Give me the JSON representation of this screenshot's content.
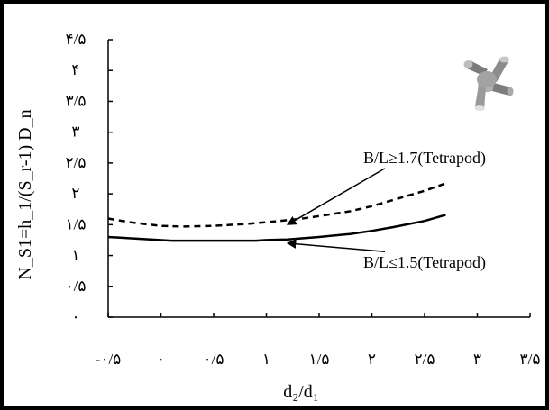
{
  "chart_data": {
    "type": "line",
    "title": "",
    "xlabel": "d₂/d₁",
    "ylabel": "N_S1=h_1/(S_r-1) D_n",
    "xlim": [
      -0.5,
      3.5
    ],
    "ylim": [
      0,
      4.5
    ],
    "xticks": [
      -0.5,
      0,
      0.5,
      1,
      1.5,
      2,
      2.5,
      3,
      3.5
    ],
    "xtick_labels": [
      "-۰/۵",
      "۰",
      "۰/۵",
      "۱",
      "۱/۵",
      "۲",
      "۲/۵",
      "۳",
      "۳/۵"
    ],
    "yticks": [
      0,
      0.5,
      1,
      1.5,
      2,
      2.5,
      3,
      3.5,
      4,
      4.5
    ],
    "ytick_labels": [
      "۰",
      "۰/۵",
      "۱",
      "۱/۵",
      "۲",
      "۲/۵",
      "۳",
      "۳/۵",
      "۴",
      "۴/۵"
    ],
    "grid": false,
    "legend": "none",
    "series": [
      {
        "style": "dashed",
        "color": "#000000",
        "x": [
          -0.5,
          -0.3,
          0,
          0.2,
          0.5,
          0.8,
          1.0,
          1.3,
          1.5,
          1.8,
          2.0,
          2.2,
          2.5,
          2.7
        ],
        "y": [
          1.6,
          1.54,
          1.48,
          1.47,
          1.48,
          1.51,
          1.54,
          1.59,
          1.64,
          1.72,
          1.8,
          1.9,
          2.05,
          2.17
        ]
      },
      {
        "style": "solid",
        "color": "#000000",
        "x": [
          -0.5,
          -0.3,
          -0.1,
          0.1,
          0.5,
          0.9,
          1.0,
          1.2,
          1.5,
          1.8,
          2.0,
          2.2,
          2.5,
          2.7
        ],
        "y": [
          1.3,
          1.28,
          1.26,
          1.24,
          1.24,
          1.24,
          1.25,
          1.26,
          1.3,
          1.35,
          1.4,
          1.46,
          1.56,
          1.66
        ]
      }
    ],
    "annotations": [
      {
        "text": "B/L≥1.7(Tetrapod)",
        "x": 2.5,
        "y": 2.5,
        "arrow_to": [
          1.2,
          1.5
        ]
      },
      {
        "text": "B/L≤1.5(Tetrapod)",
        "x": 2.5,
        "y": 0.8,
        "arrow_to": [
          1.2,
          1.2
        ]
      }
    ],
    "image": {
      "icon": "tetrapod-icon"
    }
  }
}
